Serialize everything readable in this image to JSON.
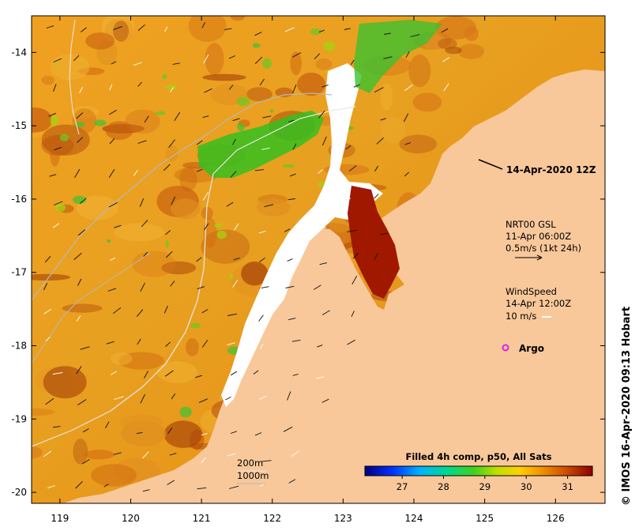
{
  "map": {
    "x_ticks": [
      "119",
      "120",
      "121",
      "122",
      "123",
      "124",
      "125",
      "126"
    ],
    "y_ticks": [
      "-14",
      "-15",
      "-16",
      "-17",
      "-18",
      "-19",
      "-20"
    ],
    "x_range": [
      118.6,
      126.7
    ],
    "y_range": [
      -20.15,
      -13.5
    ],
    "land_color": "#f8c89a",
    "nodata_color": "#ffffff"
  },
  "annotations": {
    "date_label": "14-Apr-2020 12Z",
    "current_title": "NRT00 GSL",
    "current_time": "11-Apr 06:00Z",
    "current_scale": "0.5m/s (1kt 24h)",
    "wind_title": "WindSpeed",
    "wind_time": "14-Apr 12:00Z",
    "wind_scale": "10 m/s",
    "argo_label": "Argo",
    "argo_color": "#e020e0",
    "contour_200": "200m",
    "contour_1000": "1000m"
  },
  "colorbar": {
    "title": "Filled 4h comp, p50, All Sats",
    "ticks": [
      "27",
      "28",
      "29",
      "30",
      "31"
    ],
    "tick_values": [
      27,
      28,
      29,
      30,
      31
    ],
    "range": [
      26.1,
      31.6
    ]
  },
  "credit": "© IMOS 16-Apr-2020 09:13 Hobart"
}
